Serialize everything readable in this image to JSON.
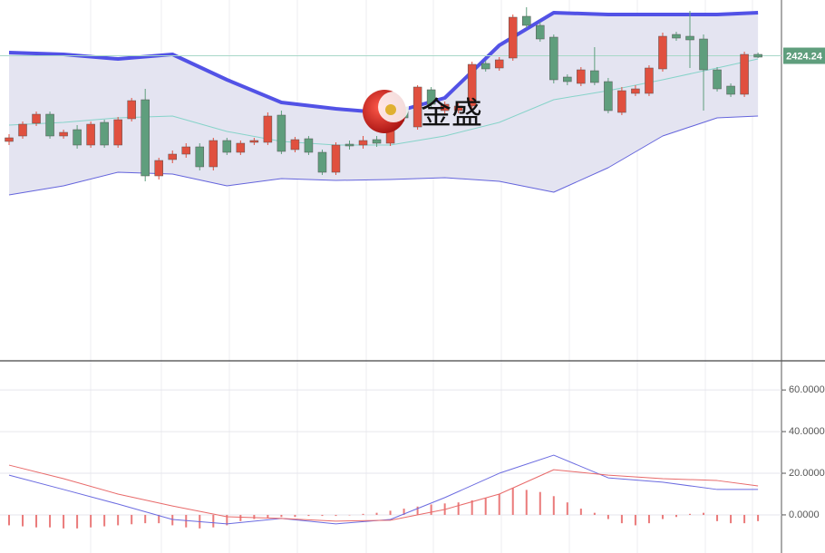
{
  "chart_data": [
    {
      "type": "candlestick",
      "ylim": [
        2256,
        2455
      ],
      "up_color": "#e0503f",
      "down_color": "#5f9e7d",
      "candles": [
        [
          2377,
          2381,
          2375,
          2379
        ],
        [
          2380,
          2388,
          2378.5,
          2386.5
        ],
        [
          2387,
          2393.5,
          2385.5,
          2392
        ],
        [
          2392,
          2393.5,
          2378.5,
          2380
        ],
        [
          2380,
          2383.5,
          2378.5,
          2382
        ],
        [
          2383.5,
          2386,
          2373,
          2375
        ],
        [
          2375,
          2388,
          2373.5,
          2386.5
        ],
        [
          2387.5,
          2389,
          2373.5,
          2375
        ],
        [
          2375,
          2390.5,
          2373.5,
          2389
        ],
        [
          2389.5,
          2401,
          2388,
          2399.5
        ],
        [
          2400,
          2406,
          2355,
          2358
        ],
        [
          2358,
          2368,
          2356,
          2366.5
        ],
        [
          2367,
          2372,
          2365,
          2370
        ],
        [
          2370,
          2376,
          2368,
          2374
        ],
        [
          2374,
          2376,
          2361,
          2363
        ],
        [
          2363,
          2379,
          2361,
          2377.5
        ],
        [
          2377.5,
          2379,
          2369.5,
          2371
        ],
        [
          2371,
          2377.5,
          2369.5,
          2376
        ],
        [
          2376.5,
          2379,
          2375,
          2377.5
        ],
        [
          2376.5,
          2393,
          2375,
          2391
        ],
        [
          2391.5,
          2394,
          2370,
          2371.5
        ],
        [
          2372.5,
          2379.5,
          2371,
          2378
        ],
        [
          2378.5,
          2380,
          2369.5,
          2371
        ],
        [
          2371,
          2372.5,
          2358.5,
          2360
        ],
        [
          2360,
          2376.5,
          2358.5,
          2375
        ],
        [
          2375.5,
          2377.5,
          2372.5,
          2374.5
        ],
        [
          2375,
          2380,
          2373,
          2377.5
        ],
        [
          2378,
          2380,
          2374,
          2376
        ],
        [
          2376,
          2392,
          2374.5,
          2390
        ],
        [
          2396,
          2398,
          2388,
          2390
        ],
        [
          2385,
          2408,
          2383.5,
          2407
        ],
        [
          2405.5,
          2407,
          2396,
          2397.5
        ],
        [
          2394,
          2399,
          2392.5,
          2397.5
        ],
        [
          2394,
          2398,
          2392.5,
          2396.5
        ],
        [
          2396.5,
          2421,
          2395,
          2419.5
        ],
        [
          2420,
          2421.5,
          2415.5,
          2417
        ],
        [
          2417.5,
          2423.5,
          2416,
          2422
        ],
        [
          2423,
          2447,
          2421.5,
          2445.5
        ],
        [
          2446,
          2451,
          2439.5,
          2441
        ],
        [
          2441,
          2443,
          2432,
          2433.5
        ],
        [
          2434.5,
          2436,
          2409,
          2411
        ],
        [
          2412.5,
          2414,
          2408,
          2410
        ],
        [
          2409,
          2418,
          2407.5,
          2416.5
        ],
        [
          2416,
          2429,
          2408,
          2409.5
        ],
        [
          2410,
          2412,
          2392.5,
          2394
        ],
        [
          2393,
          2407,
          2391.5,
          2405
        ],
        [
          2403.5,
          2408,
          2402,
          2406
        ],
        [
          2403.5,
          2419,
          2402,
          2417.5
        ],
        [
          2417,
          2437,
          2415.5,
          2435
        ],
        [
          2436,
          2437.5,
          2432.5,
          2434
        ],
        [
          2435,
          2449,
          2417.5,
          2433
        ],
        [
          2433.5,
          2436,
          2394,
          2416.5
        ],
        [
          2416.5,
          2418,
          2404.5,
          2406
        ],
        [
          2407.5,
          2409,
          2401.5,
          2403
        ],
        [
          2403,
          2426.5,
          2401.5,
          2425
        ],
        [
          2425,
          2426,
          2423,
          2423.5
        ]
      ],
      "band_fill": "#e4e4f1",
      "series": [
        {
          "color": "#5252e6",
          "width": 4,
          "x": [
            0,
            4,
            8,
            12,
            16,
            20,
            24,
            28,
            32,
            36,
            40,
            44,
            48,
            52,
            55
          ],
          "values": [
            2426,
            2425,
            2422.5,
            2425,
            2411,
            2398.5,
            2395,
            2392.5,
            2401,
            2430,
            2448,
            2447,
            2447,
            2447,
            2448
          ]
        },
        {
          "color": "#86d3c9",
          "width": 1,
          "x": [
            0,
            4,
            8,
            12,
            16,
            20,
            24,
            28,
            32,
            36,
            40,
            44,
            48,
            52,
            55
          ],
          "values": [
            2386,
            2387.5,
            2390,
            2391,
            2382.5,
            2377,
            2375,
            2375,
            2380,
            2387.5,
            2400,
            2405,
            2411,
            2417.5,
            2422.5
          ]
        },
        {
          "color": "#6464dc",
          "width": 1,
          "x": [
            0,
            4,
            8,
            12,
            16,
            20,
            24,
            28,
            32,
            36,
            40,
            44,
            48,
            52,
            55
          ],
          "values": [
            2347.5,
            2352.5,
            2360,
            2359,
            2352.5,
            2356.5,
            2355.5,
            2356,
            2357,
            2355,
            2349,
            2362.5,
            2380,
            2390,
            2391
          ]
        }
      ],
      "last_price": 2424.24,
      "last_price_color": "#5f9e7d",
      "watermark": "金盛"
    },
    {
      "type": "macd",
      "ylim": [
        -17,
        74
      ],
      "yticks": [
        {
          "value": 0,
          "label": "0.0000"
        },
        {
          "value": 20,
          "label": "20.0000"
        },
        {
          "value": 40,
          "label": "40.0000"
        },
        {
          "value": 60,
          "label": "60.0000"
        }
      ],
      "grid": true,
      "series": [
        {
          "color": "#6b6be0",
          "x": [
            0,
            4,
            8,
            12,
            16,
            20,
            24,
            28,
            32,
            36,
            40,
            44,
            48,
            52,
            55
          ],
          "values": [
            19.1,
            12.2,
            5.2,
            -2.2,
            -4.3,
            -1.7,
            -4.3,
            -2.2,
            8.3,
            20.0,
            28.7,
            17.8,
            15.7,
            12.2,
            12.2
          ]
        },
        {
          "color": "#e86a6a",
          "x": [
            0,
            4,
            8,
            12,
            16,
            20,
            24,
            28,
            32,
            36,
            40,
            44,
            48,
            52,
            55
          ],
          "values": [
            23.9,
            17.4,
            10.0,
            4.3,
            -0.9,
            -1.7,
            -3.0,
            -2.6,
            2.6,
            10.0,
            21.7,
            19.1,
            17.4,
            16.5,
            13.9
          ]
        }
      ],
      "histogram": {
        "color": "#ea7a7a",
        "values": [
          -5,
          -5.5,
          -6,
          -6,
          -6.5,
          -6.5,
          -6,
          -5.5,
          -5,
          -4.5,
          -4,
          -4,
          -5,
          -6,
          -6.5,
          -6,
          -5,
          -3,
          -2,
          -1.5,
          -1,
          -1,
          -0.5,
          -0.5,
          -0.5,
          0,
          0.5,
          1,
          2,
          3,
          4,
          5,
          5.5,
          6,
          7,
          8,
          10,
          13,
          12,
          11,
          9,
          6,
          3,
          1,
          -2,
          -4,
          -5,
          -4,
          -2,
          -1,
          0.5,
          1,
          -3,
          -4,
          -4,
          -3
        ]
      }
    }
  ]
}
